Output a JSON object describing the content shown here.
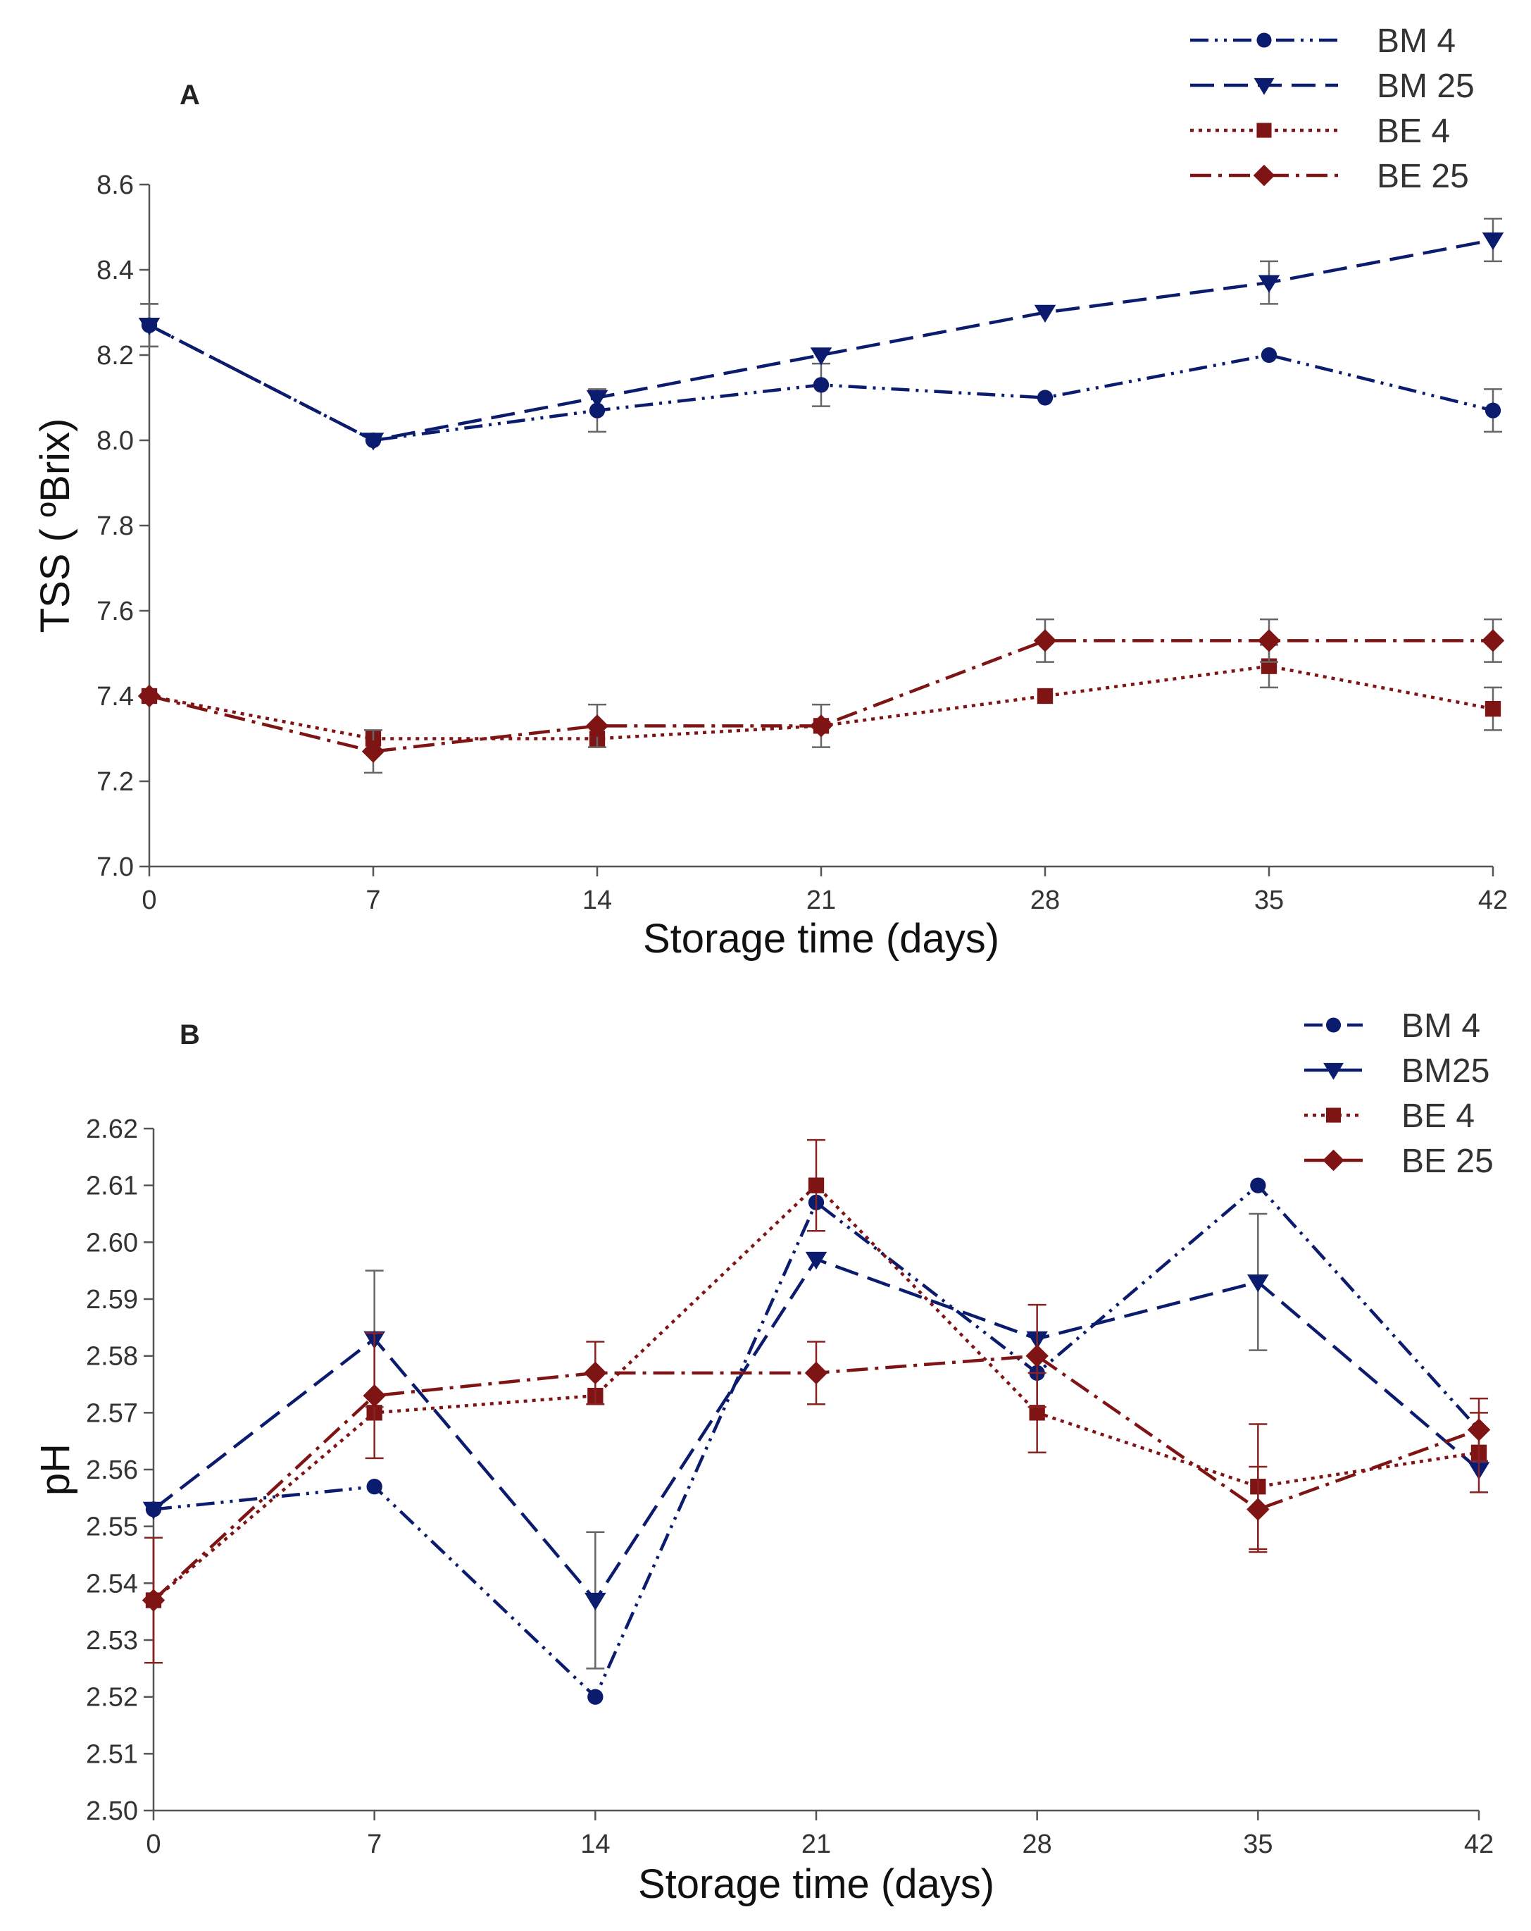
{
  "chart_data": [
    {
      "type": "line",
      "panel_label": "A",
      "title": "",
      "xlabel": "Storage time (days)",
      "ylabel": "TSS ( ºBrix)",
      "x": [
        0,
        7,
        14,
        21,
        28,
        35,
        42
      ],
      "x_ticks": [
        "0",
        "7",
        "14",
        "21",
        "28",
        "35",
        "42"
      ],
      "ylim": [
        7.0,
        8.6
      ],
      "y_ticks": [
        "7.0",
        "7.2",
        "7.4",
        "7.6",
        "7.8",
        "8.0",
        "8.2",
        "8.4",
        "8.6"
      ],
      "grid": false,
      "legend_position": "top-right",
      "series": [
        {
          "name": "BM 4",
          "color": "#0b1c6e",
          "marker": "circle",
          "dash": "dash-dot-dot",
          "values": [
            8.27,
            8.0,
            8.07,
            8.13,
            8.1,
            8.2,
            8.07
          ],
          "errors": [
            0.05,
            0.0,
            0.05,
            0.05,
            0.0,
            0.0,
            0.05
          ]
        },
        {
          "name": "BM 25",
          "color": "#0b1c6e",
          "marker": "triangle-down",
          "dash": "long-dash",
          "values": [
            8.27,
            8.0,
            8.1,
            8.2,
            8.3,
            8.37,
            8.47
          ],
          "errors": [
            0.05,
            0.0,
            0.0,
            0.0,
            0.0,
            0.05,
            0.05
          ]
        },
        {
          "name": "BE 4",
          "color": "#7f1414",
          "marker": "square",
          "dash": "dotted",
          "values": [
            7.4,
            7.3,
            7.3,
            7.33,
            7.4,
            7.47,
            7.37
          ],
          "errors": [
            0.0,
            0.0,
            0.0,
            0.0,
            0.0,
            0.05,
            0.05
          ]
        },
        {
          "name": "BE 25",
          "color": "#7f1414",
          "marker": "diamond",
          "dash": "dash-dot",
          "values": [
            7.4,
            7.27,
            7.33,
            7.33,
            7.53,
            7.53,
            7.53
          ],
          "errors": [
            0.0,
            0.05,
            0.05,
            0.05,
            0.05,
            0.05,
            0.05
          ]
        }
      ]
    },
    {
      "type": "line",
      "panel_label": "B",
      "title": "",
      "xlabel": "Storage time (days)",
      "ylabel": "pH",
      "x": [
        0,
        7,
        14,
        21,
        28,
        35,
        42
      ],
      "x_ticks": [
        "0",
        "7",
        "14",
        "21",
        "28",
        "35",
        "42"
      ],
      "ylim": [
        2.5,
        2.62
      ],
      "y_ticks": [
        "2.50",
        "2.51",
        "2.52",
        "2.53",
        "2.54",
        "2.55",
        "2.56",
        "2.57",
        "2.58",
        "2.59",
        "2.60",
        "2.61",
        "2.62"
      ],
      "grid": false,
      "legend_position": "top-right",
      "series": [
        {
          "name": "BM 4",
          "color": "#0b1c6e",
          "marker": "circle",
          "dash": "dash-dot-dot",
          "values": [
            2.553,
            2.557,
            2.52,
            2.607,
            2.577,
            2.61,
            2.567
          ],
          "errors": [
            0.0,
            0.0,
            0.0,
            0.0,
            0.0,
            0.0,
            0.0
          ]
        },
        {
          "name": "BM25",
          "color": "#0b1c6e",
          "marker": "triangle-down",
          "dash": "long-dash",
          "values": [
            2.553,
            2.583,
            2.537,
            2.597,
            2.583,
            2.593,
            2.56
          ],
          "errors": [
            0.0,
            0.012,
            0.012,
            0.0,
            0.0,
            0.012,
            0.0
          ]
        },
        {
          "name": "BE 4",
          "color": "#7f1414",
          "marker": "square",
          "dash": "dotted",
          "values": [
            2.537,
            2.57,
            2.573,
            2.61,
            2.57,
            2.557,
            2.563
          ],
          "errors": [
            0.011,
            0.0,
            0.0,
            0.008,
            0.007,
            0.011,
            0.007
          ]
        },
        {
          "name": "BE 25",
          "color": "#7f1414",
          "marker": "diamond",
          "dash": "dash-dot",
          "values": [
            2.537,
            2.573,
            2.577,
            2.577,
            2.58,
            2.553,
            2.567
          ],
          "errors": [
            0.011,
            0.011,
            0.0055,
            0.0055,
            0.009,
            0.0075,
            0.0055
          ]
        }
      ]
    }
  ]
}
